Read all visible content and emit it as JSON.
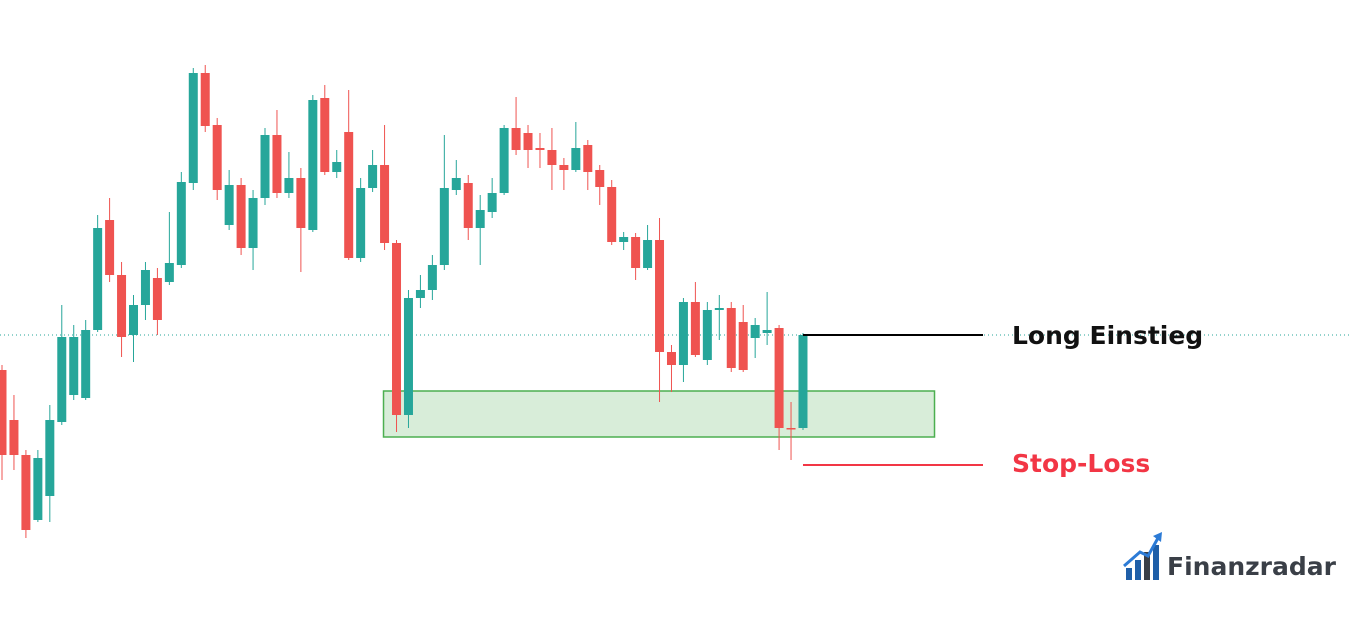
{
  "chart_data": {
    "type": "candlestick",
    "open": [
      255,
      205,
      170,
      105,
      129,
      203,
      230,
      227,
      295,
      405,
      350,
      290,
      320,
      347,
      343,
      360,
      442,
      552,
      500,
      400,
      440,
      377,
      427,
      490,
      432,
      447,
      395,
      527,
      453,
      493,
      367,
      437,
      460,
      382,
      210,
      327,
      335,
      360,
      435,
      442,
      397,
      413,
      432,
      497,
      492,
      477,
      475,
      460,
      455,
      480,
      455,
      438,
      383,
      388,
      357,
      385,
      273,
      260,
      323,
      265,
      315,
      317,
      303,
      287,
      292,
      297,
      197,
      197
    ],
    "high": [
      260,
      230,
      175,
      175,
      220,
      320,
      300,
      305,
      410,
      427,
      363,
      330,
      363,
      357,
      413,
      453,
      557,
      560,
      507,
      455,
      447,
      435,
      497,
      515,
      473,
      457,
      530,
      540,
      475,
      535,
      447,
      475,
      500,
      385,
      335,
      350,
      370,
      490,
      465,
      450,
      430,
      447,
      500,
      528,
      500,
      492,
      497,
      467,
      503,
      485,
      460,
      445,
      393,
      392,
      400,
      407,
      280,
      327,
      343,
      323,
      330,
      323,
      320,
      307,
      333,
      300,
      223,
      292
    ],
    "low": [
      145,
      155,
      87,
      103,
      103,
      200,
      225,
      225,
      293,
      343,
      268,
      263,
      305,
      290,
      340,
      357,
      435,
      493,
      425,
      395,
      370,
      355,
      420,
      427,
      427,
      353,
      393,
      450,
      447,
      365,
      363,
      433,
      375,
      193,
      197,
      317,
      325,
      355,
      430,
      385,
      360,
      407,
      430,
      470,
      457,
      457,
      435,
      435,
      453,
      435,
      420,
      380,
      375,
      345,
      355,
      223,
      233,
      243,
      268,
      260,
      285,
      253,
      253,
      267,
      280,
      175,
      165,
      195
    ],
    "close": [
      170,
      170,
      95,
      167,
      205,
      288,
      288,
      295,
      397,
      350,
      288,
      320,
      355,
      305,
      362,
      443,
      552,
      499,
      435,
      440,
      377,
      427,
      490,
      432,
      447,
      397,
      525,
      453,
      463,
      367,
      437,
      460,
      382,
      210,
      327,
      335,
      360,
      437,
      447,
      397,
      415,
      432,
      497,
      475,
      475,
      475,
      460,
      455,
      477,
      453,
      438,
      383,
      388,
      357,
      385,
      273,
      260,
      323,
      270,
      315,
      317,
      257,
      255,
      300,
      295,
      197,
      197,
      290
    ],
    "up_color": "#26a69a",
    "down_color": "#ef5350",
    "ylim": [
      0,
      625
    ],
    "zone": {
      "low": 188,
      "high": 234,
      "color": "#4caf50"
    },
    "entry": {
      "label": "Long Einstieg"
    },
    "stop_loss": {
      "label": "Stop-Loss",
      "value": 160,
      "color": "#f23645"
    }
  },
  "brand": "Finanzradar"
}
